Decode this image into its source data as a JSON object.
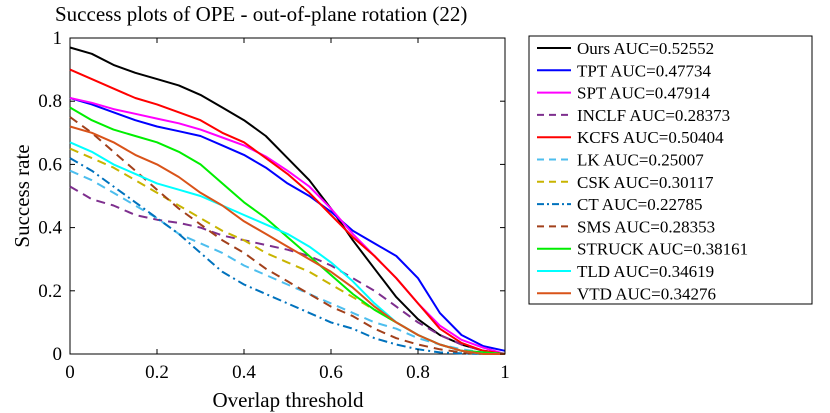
{
  "chart_data": {
    "type": "line",
    "title": "Success plots of OPE - out-of-plane rotation (22)",
    "xlabel": "Overlap threshold",
    "ylabel": "Success rate",
    "xlim": [
      0,
      1
    ],
    "ylim": [
      0,
      1
    ],
    "xticks": [
      0,
      0.2,
      0.4,
      0.6,
      0.8,
      1
    ],
    "xtick_labels": [
      "0",
      "0.2",
      "0.4",
      "0.6",
      "0.8",
      "1"
    ],
    "yticks": [
      0,
      0.2,
      0.4,
      0.6,
      0.8,
      1
    ],
    "ytick_labels": [
      "0",
      "0.2",
      "0.4",
      "0.6",
      "0.8",
      "1"
    ],
    "grid": false,
    "legend_position": "outside-right",
    "series": [
      {
        "name": "Ours",
        "label": "Ours AUC=0.52552",
        "color": "#000000",
        "dash": "solid",
        "x": [
          0,
          0.05,
          0.1,
          0.15,
          0.2,
          0.25,
          0.3,
          0.35,
          0.4,
          0.45,
          0.5,
          0.55,
          0.6,
          0.65,
          0.7,
          0.75,
          0.8,
          0.85,
          0.9,
          0.95,
          1
        ],
        "y": [
          0.97,
          0.95,
          0.915,
          0.89,
          0.87,
          0.85,
          0.82,
          0.78,
          0.74,
          0.69,
          0.62,
          0.55,
          0.46,
          0.36,
          0.27,
          0.18,
          0.11,
          0.06,
          0.03,
          0.01,
          0.0
        ]
      },
      {
        "name": "TPT",
        "label": "TPT AUC=0.47734",
        "color": "#0000ff",
        "dash": "solid",
        "x": [
          0,
          0.05,
          0.1,
          0.15,
          0.2,
          0.25,
          0.3,
          0.35,
          0.4,
          0.45,
          0.5,
          0.55,
          0.6,
          0.65,
          0.7,
          0.75,
          0.8,
          0.85,
          0.9,
          0.95,
          1
        ],
        "y": [
          0.81,
          0.79,
          0.765,
          0.74,
          0.72,
          0.705,
          0.69,
          0.66,
          0.63,
          0.59,
          0.54,
          0.5,
          0.45,
          0.39,
          0.35,
          0.31,
          0.24,
          0.13,
          0.06,
          0.025,
          0.01
        ]
      },
      {
        "name": "SPT",
        "label": "SPT AUC=0.47914",
        "color": "#ff00ff",
        "dash": "solid",
        "x": [
          0,
          0.05,
          0.1,
          0.15,
          0.2,
          0.25,
          0.3,
          0.35,
          0.4,
          0.45,
          0.5,
          0.55,
          0.6,
          0.65,
          0.7,
          0.75,
          0.8,
          0.85,
          0.9,
          0.95,
          1
        ],
        "y": [
          0.81,
          0.795,
          0.775,
          0.76,
          0.745,
          0.73,
          0.71,
          0.685,
          0.66,
          0.625,
          0.58,
          0.53,
          0.46,
          0.38,
          0.31,
          0.24,
          0.16,
          0.09,
          0.045,
          0.02,
          0.0
        ]
      },
      {
        "name": "INCLF",
        "label": "INCLF AUC=0.28373",
        "color": "#7e2f8e",
        "dash": "dashed",
        "x": [
          0,
          0.05,
          0.1,
          0.15,
          0.2,
          0.25,
          0.3,
          0.35,
          0.4,
          0.45,
          0.5,
          0.55,
          0.6,
          0.65,
          0.7,
          0.75,
          0.8,
          0.85,
          0.9,
          0.95,
          1
        ],
        "y": [
          0.53,
          0.49,
          0.47,
          0.44,
          0.425,
          0.415,
          0.4,
          0.375,
          0.36,
          0.345,
          0.33,
          0.31,
          0.28,
          0.24,
          0.2,
          0.15,
          0.1,
          0.06,
          0.03,
          0.01,
          0.0
        ]
      },
      {
        "name": "KCFS",
        "label": "KCFS AUC=0.50404",
        "color": "#ff0000",
        "dash": "solid",
        "x": [
          0,
          0.05,
          0.1,
          0.15,
          0.2,
          0.25,
          0.3,
          0.35,
          0.4,
          0.45,
          0.5,
          0.55,
          0.6,
          0.65,
          0.7,
          0.75,
          0.8,
          0.85,
          0.9,
          0.95,
          1
        ],
        "y": [
          0.9,
          0.87,
          0.84,
          0.81,
          0.79,
          0.765,
          0.74,
          0.7,
          0.67,
          0.62,
          0.57,
          0.51,
          0.44,
          0.37,
          0.31,
          0.24,
          0.16,
          0.08,
          0.035,
          0.01,
          0.0
        ]
      },
      {
        "name": "LK",
        "label": "LK AUC=0.25007",
        "color": "#4dbeee",
        "dash": "dashed",
        "x": [
          0,
          0.05,
          0.1,
          0.15,
          0.2,
          0.25,
          0.3,
          0.35,
          0.4,
          0.45,
          0.5,
          0.55,
          0.6,
          0.65,
          0.7,
          0.75,
          0.8,
          0.85,
          0.9,
          0.95,
          1
        ],
        "y": [
          0.58,
          0.55,
          0.51,
          0.47,
          0.43,
          0.38,
          0.35,
          0.32,
          0.28,
          0.25,
          0.22,
          0.19,
          0.16,
          0.13,
          0.1,
          0.08,
          0.05,
          0.03,
          0.015,
          0.005,
          0.0
        ]
      },
      {
        "name": "CSK",
        "label": "CSK AUC=0.30117",
        "color": "#c8b400",
        "dash": "dashed",
        "x": [
          0,
          0.05,
          0.1,
          0.15,
          0.2,
          0.25,
          0.3,
          0.35,
          0.4,
          0.45,
          0.5,
          0.55,
          0.6,
          0.65,
          0.7,
          0.75,
          0.8,
          0.85,
          0.9,
          0.95,
          1
        ],
        "y": [
          0.65,
          0.62,
          0.59,
          0.55,
          0.51,
          0.47,
          0.43,
          0.39,
          0.36,
          0.32,
          0.29,
          0.26,
          0.22,
          0.18,
          0.14,
          0.1,
          0.06,
          0.03,
          0.01,
          0.005,
          0.0
        ]
      },
      {
        "name": "CT",
        "label": "CT AUC=0.22785",
        "color": "#0072bd",
        "dash": "dashdot",
        "x": [
          0,
          0.05,
          0.1,
          0.15,
          0.2,
          0.25,
          0.3,
          0.35,
          0.4,
          0.45,
          0.5,
          0.55,
          0.6,
          0.65,
          0.7,
          0.75,
          0.8,
          0.85,
          0.9,
          0.95,
          1
        ],
        "y": [
          0.62,
          0.58,
          0.53,
          0.48,
          0.43,
          0.38,
          0.32,
          0.26,
          0.22,
          0.19,
          0.16,
          0.13,
          0.1,
          0.08,
          0.05,
          0.03,
          0.015,
          0.005,
          0.002,
          0.0,
          0.0
        ]
      },
      {
        "name": "SMS",
        "label": "SMS AUC=0.28353",
        "color": "#a2401b",
        "dash": "dashed",
        "x": [
          0,
          0.05,
          0.1,
          0.15,
          0.2,
          0.25,
          0.3,
          0.35,
          0.4,
          0.45,
          0.5,
          0.55,
          0.6,
          0.65,
          0.7,
          0.75,
          0.8,
          0.85,
          0.9,
          0.95,
          1
        ],
        "y": [
          0.75,
          0.7,
          0.64,
          0.58,
          0.52,
          0.46,
          0.41,
          0.36,
          0.32,
          0.27,
          0.23,
          0.19,
          0.15,
          0.12,
          0.08,
          0.05,
          0.03,
          0.015,
          0.005,
          0.0,
          0.0
        ]
      },
      {
        "name": "STRUCK",
        "label": "STRUCK AUC=0.38161",
        "color": "#00ee00",
        "dash": "solid",
        "x": [
          0,
          0.05,
          0.1,
          0.15,
          0.2,
          0.25,
          0.3,
          0.35,
          0.4,
          0.45,
          0.5,
          0.55,
          0.6,
          0.65,
          0.7,
          0.75,
          0.8,
          0.85,
          0.9,
          0.95,
          1
        ],
        "y": [
          0.78,
          0.74,
          0.71,
          0.69,
          0.67,
          0.64,
          0.6,
          0.54,
          0.48,
          0.43,
          0.37,
          0.31,
          0.25,
          0.19,
          0.14,
          0.1,
          0.06,
          0.03,
          0.01,
          0.005,
          0.0
        ]
      },
      {
        "name": "TLD",
        "label": "TLD AUC=0.34619",
        "color": "#00ffff",
        "dash": "solid",
        "x": [
          0,
          0.05,
          0.1,
          0.15,
          0.2,
          0.25,
          0.3,
          0.35,
          0.4,
          0.45,
          0.5,
          0.55,
          0.6,
          0.65,
          0.7,
          0.75,
          0.8,
          0.85,
          0.9,
          0.95,
          1
        ],
        "y": [
          0.67,
          0.64,
          0.6,
          0.57,
          0.54,
          0.52,
          0.5,
          0.47,
          0.44,
          0.41,
          0.38,
          0.34,
          0.29,
          0.23,
          0.16,
          0.1,
          0.06,
          0.03,
          0.01,
          0.0,
          0.0
        ]
      },
      {
        "name": "VTD",
        "label": "VTD AUC=0.34276",
        "color": "#d95319",
        "dash": "solid",
        "x": [
          0,
          0.05,
          0.1,
          0.15,
          0.2,
          0.25,
          0.3,
          0.35,
          0.4,
          0.45,
          0.5,
          0.55,
          0.6,
          0.65,
          0.7,
          0.75,
          0.8,
          0.85,
          0.9,
          0.95,
          1
        ],
        "y": [
          0.72,
          0.7,
          0.67,
          0.63,
          0.6,
          0.56,
          0.51,
          0.47,
          0.42,
          0.38,
          0.34,
          0.3,
          0.26,
          0.21,
          0.15,
          0.1,
          0.06,
          0.03,
          0.01,
          0.0,
          0.0
        ]
      }
    ]
  }
}
